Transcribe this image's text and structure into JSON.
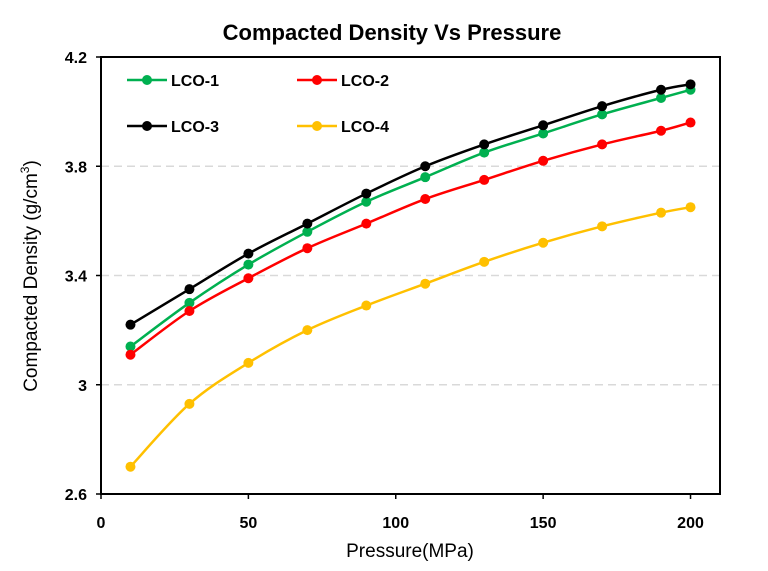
{
  "chart_data": {
    "type": "line",
    "title": "Compacted Density Vs Pressure",
    "xlabel": "Pressure(MPa)",
    "ylabel": "Compacted Density (g/cm",
    "ylabel_sup": "3",
    "ylabel_end": ")",
    "xlim": [
      0,
      210
    ],
    "ylim": [
      2.6,
      4.2
    ],
    "xticks": [
      0,
      50,
      100,
      150,
      200
    ],
    "yticks": [
      2.6,
      3.0,
      3.4,
      3.8,
      4.2
    ],
    "ytick_labels": [
      "2.6",
      "3",
      "3.4",
      "3.8",
      "4.2"
    ],
    "grid": "horizontal dashed",
    "legend_placement": "top-left",
    "x": [
      10,
      30,
      50,
      70,
      90,
      110,
      130,
      150,
      170,
      190,
      200
    ],
    "series": [
      {
        "name": "LCO-1",
        "color": "#00b050",
        "values": [
          3.14,
          3.3,
          3.44,
          3.56,
          3.67,
          3.76,
          3.85,
          3.92,
          3.99,
          4.05,
          4.08
        ]
      },
      {
        "name": "LCO-2",
        "color": "#ff0000",
        "values": [
          3.11,
          3.27,
          3.39,
          3.5,
          3.59,
          3.68,
          3.75,
          3.82,
          3.88,
          3.93,
          3.96
        ]
      },
      {
        "name": "LCO-3",
        "color": "#000000",
        "values": [
          3.22,
          3.35,
          3.48,
          3.59,
          3.7,
          3.8,
          3.88,
          3.95,
          4.02,
          4.08,
          4.1
        ]
      },
      {
        "name": "LCO-4",
        "color": "#ffc000",
        "values": [
          2.7,
          2.93,
          3.08,
          3.2,
          3.29,
          3.37,
          3.45,
          3.52,
          3.58,
          3.63,
          3.65
        ]
      }
    ]
  }
}
